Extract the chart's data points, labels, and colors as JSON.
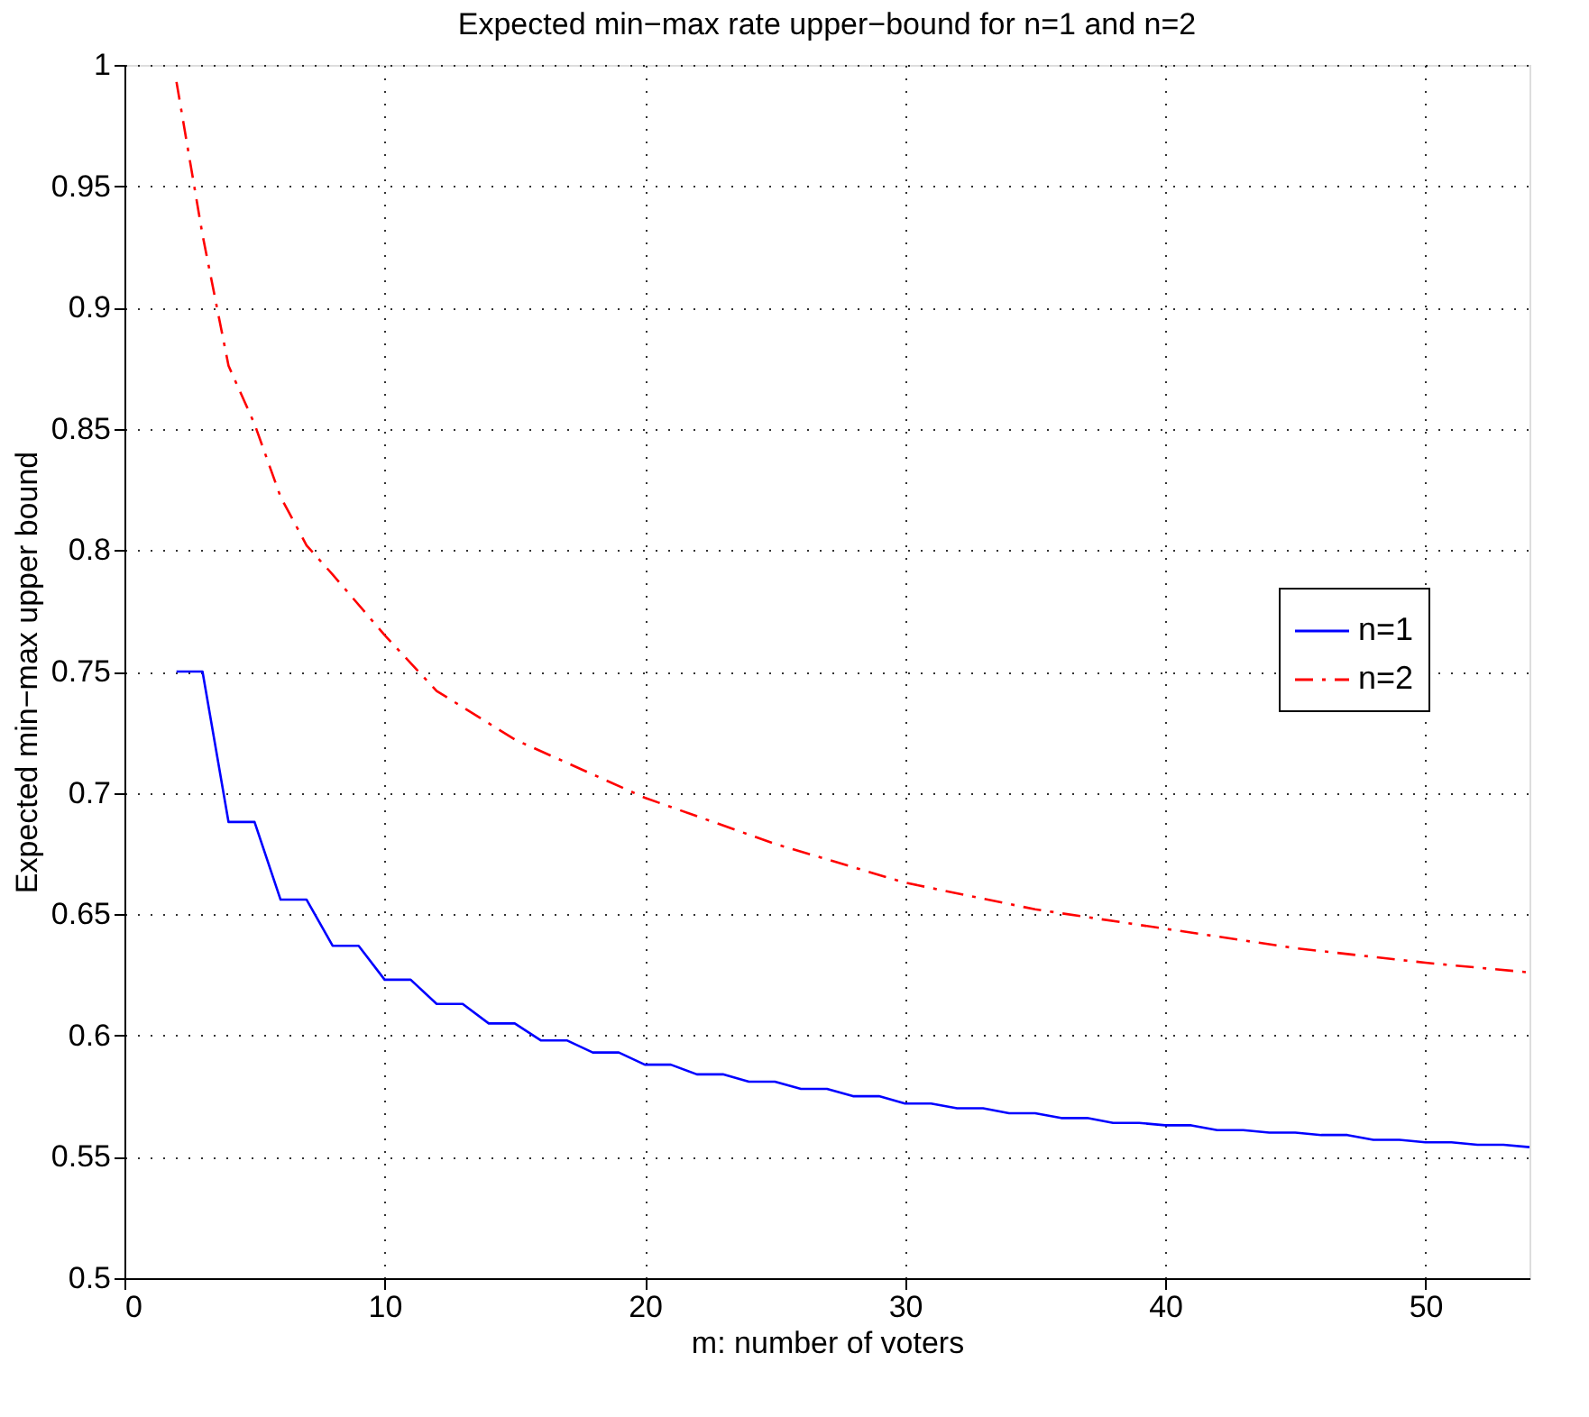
{
  "chart_data": {
    "type": "line",
    "title": "Expected min−max rate upper−bound for n=1 and n=2",
    "xlabel": "m: number of voters",
    "ylabel": "Expected min−max upper bound",
    "series": [
      {
        "name": "n=1",
        "color": "#0000ff",
        "line_style": "solid",
        "x": [
          2,
          3,
          4,
          5,
          6,
          7,
          8,
          9,
          10,
          11,
          12,
          13,
          14,
          15,
          16,
          17,
          18,
          19,
          20,
          21,
          22,
          23,
          24,
          25,
          26,
          27,
          28,
          29,
          30,
          31,
          32,
          33,
          34,
          35,
          36,
          37,
          38,
          39,
          40,
          41,
          42,
          43,
          44,
          45,
          46,
          47,
          48,
          49,
          50,
          51,
          52,
          53,
          54
        ],
        "values": [
          0.75,
          0.75,
          0.688,
          0.688,
          0.656,
          0.656,
          0.637,
          0.637,
          0.623,
          0.623,
          0.613,
          0.613,
          0.605,
          0.605,
          0.598,
          0.598,
          0.593,
          0.593,
          0.588,
          0.588,
          0.584,
          0.584,
          0.581,
          0.581,
          0.578,
          0.578,
          0.575,
          0.575,
          0.572,
          0.572,
          0.57,
          0.57,
          0.568,
          0.568,
          0.566,
          0.566,
          0.564,
          0.564,
          0.563,
          0.563,
          0.561,
          0.561,
          0.56,
          0.56,
          0.559,
          0.559,
          0.557,
          0.557,
          0.556,
          0.556,
          0.555,
          0.555,
          0.554
        ]
      },
      {
        "name": "n=2",
        "color": "#ff0000",
        "line_style": "dashed",
        "x": [
          2,
          3,
          4,
          5,
          6,
          7,
          8,
          10,
          12,
          15,
          20,
          25,
          30,
          35,
          40,
          45,
          50,
          54
        ],
        "values": [
          0.993,
          0.93,
          0.876,
          0.852,
          0.822,
          0.802,
          0.79,
          0.765,
          0.742,
          0.722,
          0.698,
          0.679,
          0.663,
          0.652,
          0.644,
          0.636,
          0.63,
          0.626
        ]
      }
    ],
    "xlim": [
      0,
      54
    ],
    "xticks": [
      0,
      10,
      20,
      30,
      40,
      50
    ],
    "ylim": [
      0.5,
      1
    ],
    "yticks": [
      0.5,
      0.55,
      0.6,
      0.65,
      0.7,
      0.75,
      0.8,
      0.85,
      0.9,
      0.95,
      1
    ],
    "grid": true,
    "legend": "right",
    "marker": "none"
  }
}
